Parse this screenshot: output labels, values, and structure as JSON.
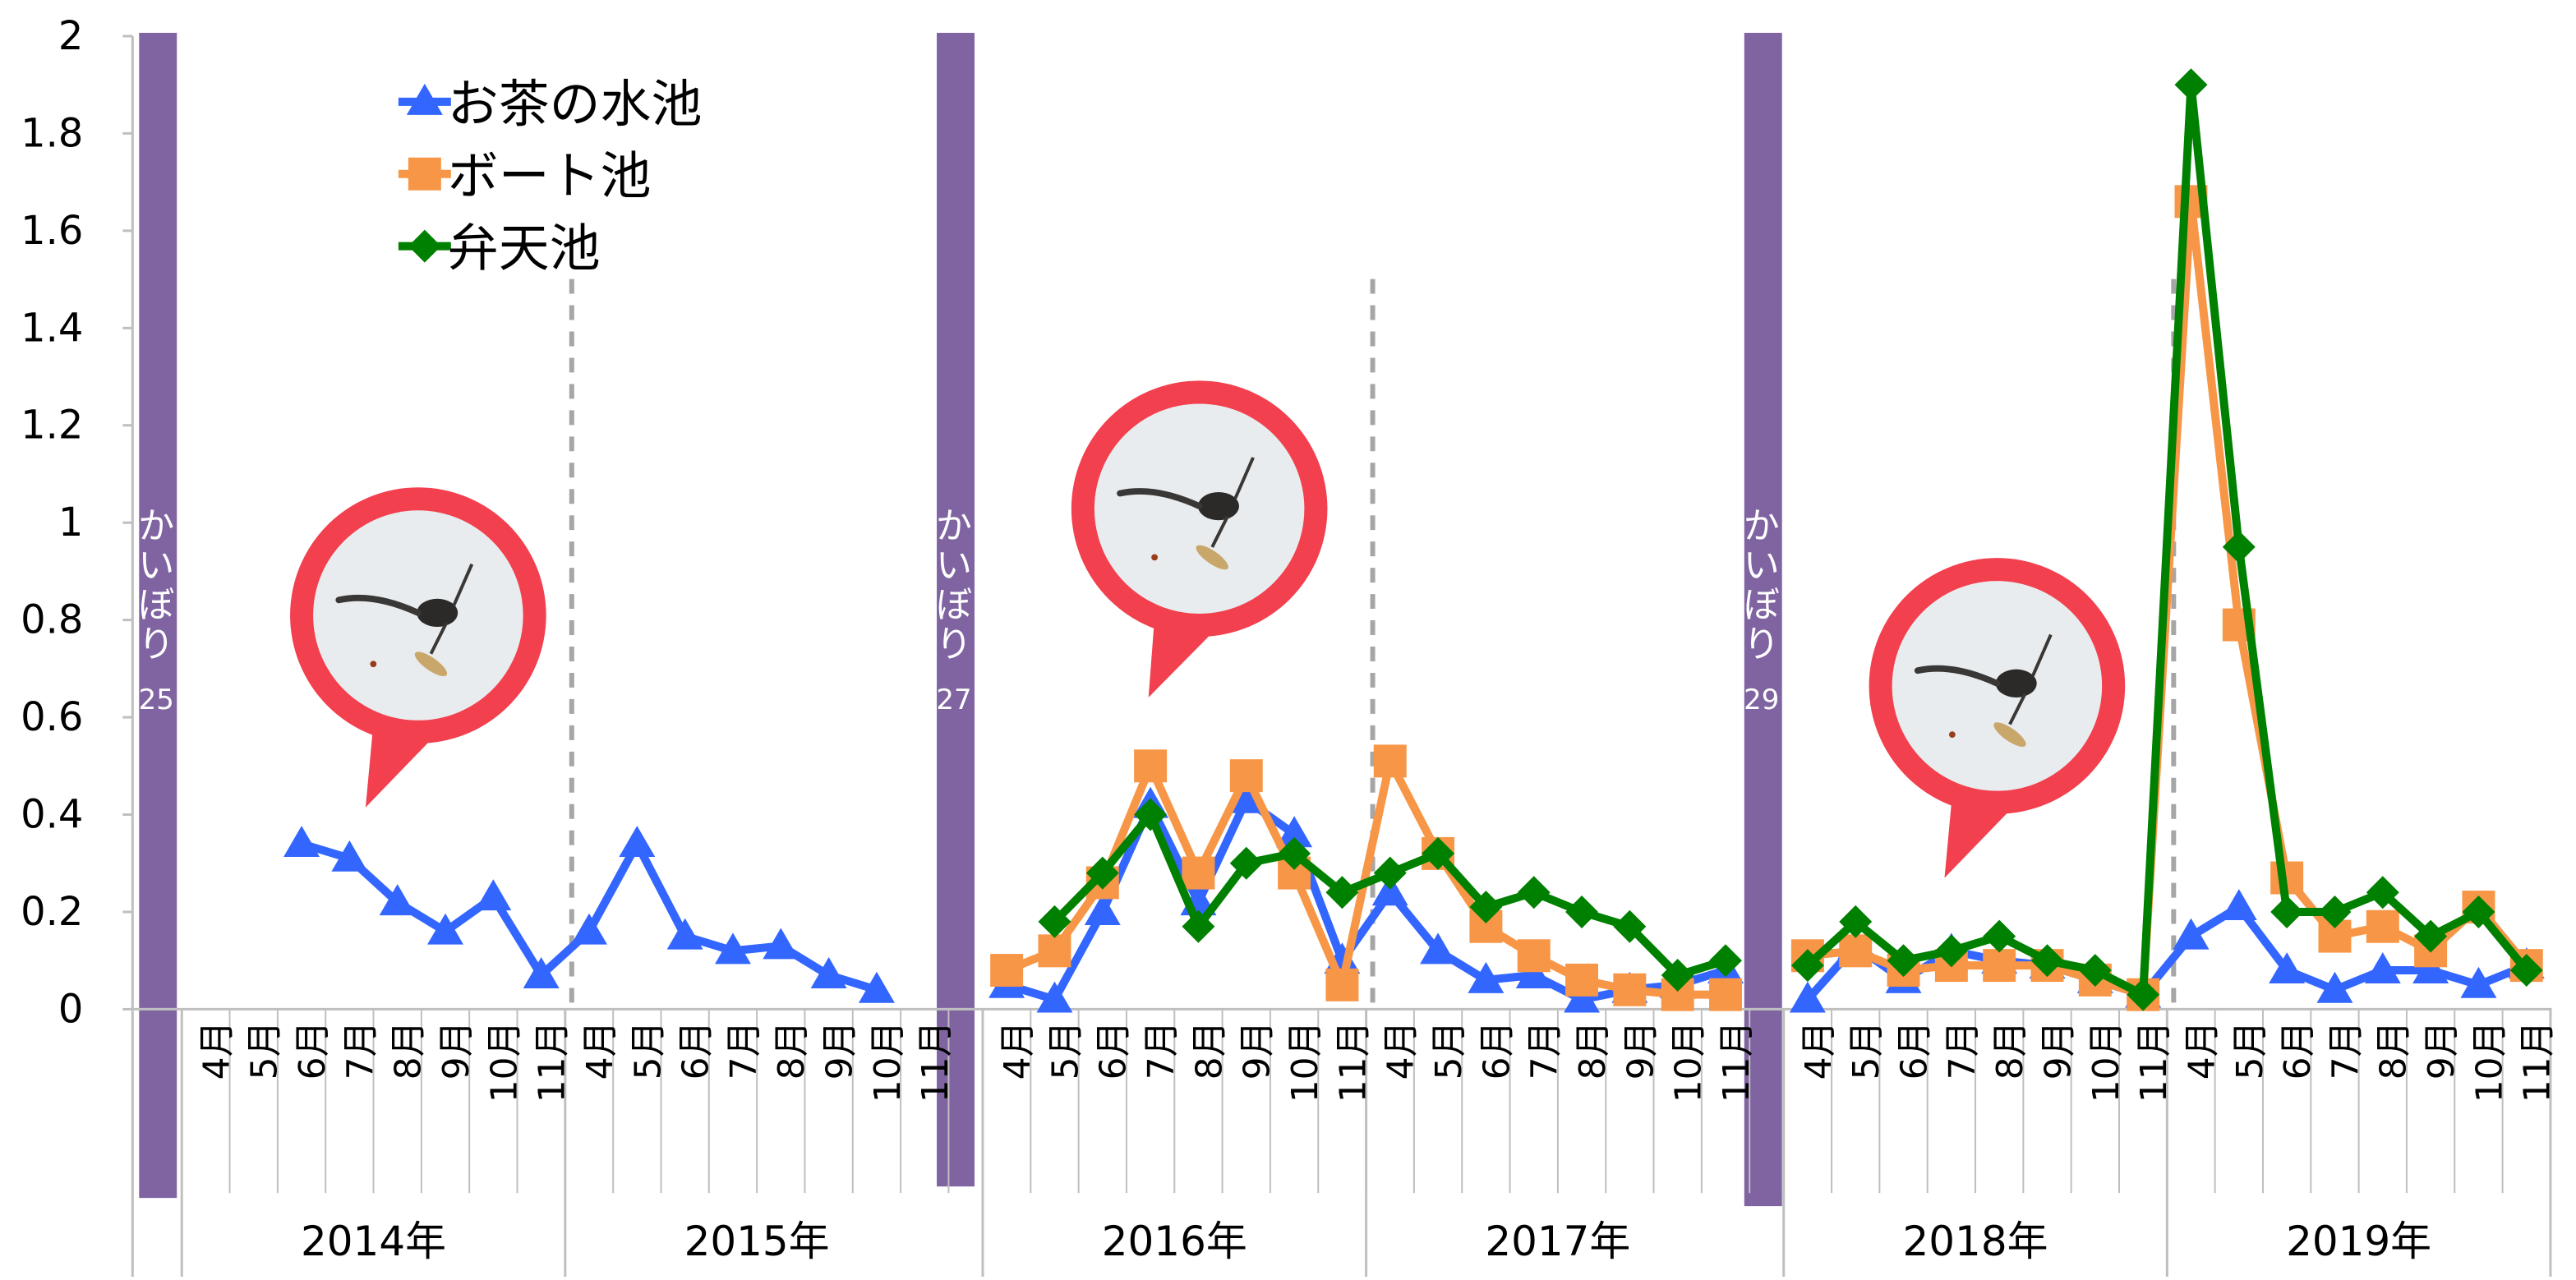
{
  "chart_data": {
    "type": "line",
    "ylim": [
      0,
      2
    ],
    "yticks": [
      "0",
      "0.2",
      "0.4",
      "0.6",
      "0.8",
      "1",
      "1.2",
      "1.4",
      "1.6",
      "1.8",
      "2"
    ],
    "years": [
      {
        "label": "2014年",
        "months": [
          "4月",
          "5月",
          "6月",
          "7月",
          "8月",
          "9月",
          "10月",
          "11月"
        ]
      },
      {
        "label": "2015年",
        "months": [
          "4月",
          "5月",
          "6月",
          "7月",
          "8月",
          "9月",
          "10月",
          "11月"
        ]
      },
      {
        "label": "2016年",
        "months": [
          "4月",
          "5月",
          "6月",
          "7月",
          "8月",
          "9月",
          "10月",
          "11月"
        ]
      },
      {
        "label": "2017年",
        "months": [
          "4月",
          "5月",
          "6月",
          "7月",
          "8月",
          "9月",
          "10月",
          "11月"
        ]
      },
      {
        "label": "2018年",
        "months": [
          "4月",
          "5月",
          "6月",
          "7月",
          "8月",
          "9月",
          "10月",
          "11月"
        ]
      },
      {
        "label": "2019年",
        "months": [
          "4月",
          "5月",
          "6月",
          "7月",
          "8月",
          "9月",
          "10月",
          "11月"
        ]
      }
    ],
    "bands": [
      {
        "text": "かいぼり",
        "num": "25"
      },
      {
        "text": "かいぼり",
        "num": "27"
      },
      {
        "text": "かいぼり",
        "num": "29"
      }
    ],
    "series": [
      {
        "name": "お茶の水池",
        "color": "#3366FF",
        "marker": "triangle",
        "segments": [
          [
            null,
            null,
            0.34,
            0.31,
            0.22,
            0.16,
            0.23,
            0.07,
            0.16,
            0.34,
            0.15,
            0.12,
            0.13,
            0.07,
            0.04,
            null
          ],
          [
            0.05,
            0.02,
            0.2,
            0.42,
            0.22,
            0.43,
            0.36,
            0.1,
            0.24,
            0.12,
            0.06,
            0.07,
            0.02,
            0.04,
            0.05,
            0.08
          ],
          [
            0.02,
            0.13,
            0.06,
            0.12,
            0.1,
            0.09,
            0.06,
            0.03,
            0.15,
            0.21,
            0.08,
            0.04,
            0.08,
            0.08,
            0.05,
            0.09
          ]
        ]
      },
      {
        "name": "ボート池",
        "color": "#F79646",
        "marker": "square",
        "segments": [
          null,
          [
            0.08,
            0.12,
            0.26,
            0.5,
            0.28,
            0.48,
            0.28,
            0.05,
            0.51,
            0.32,
            0.17,
            0.11,
            0.06,
            0.04,
            0.03,
            0.03
          ],
          [
            0.11,
            0.12,
            0.08,
            0.09,
            0.09,
            0.09,
            0.06,
            0.03,
            1.66,
            0.79,
            0.27,
            0.15,
            0.17,
            0.12,
            0.21,
            0.09
          ]
        ]
      },
      {
        "name": "弁天池",
        "color": "#008000",
        "marker": "diamond",
        "segments": [
          null,
          [
            null,
            0.18,
            0.28,
            0.4,
            0.17,
            0.3,
            0.32,
            0.24,
            0.28,
            0.32,
            0.21,
            0.24,
            0.2,
            0.17,
            0.07,
            0.1
          ],
          [
            0.09,
            0.18,
            0.1,
            0.12,
            0.15,
            0.1,
            0.08,
            0.03,
            1.9,
            0.95,
            0.2,
            0.2,
            0.24,
            0.15,
            0.2,
            0.08
          ]
        ]
      }
    ]
  },
  "colors": {
    "band": "#8064A2",
    "bubble": "#F2404F",
    "axis": "#bfbfbf"
  }
}
